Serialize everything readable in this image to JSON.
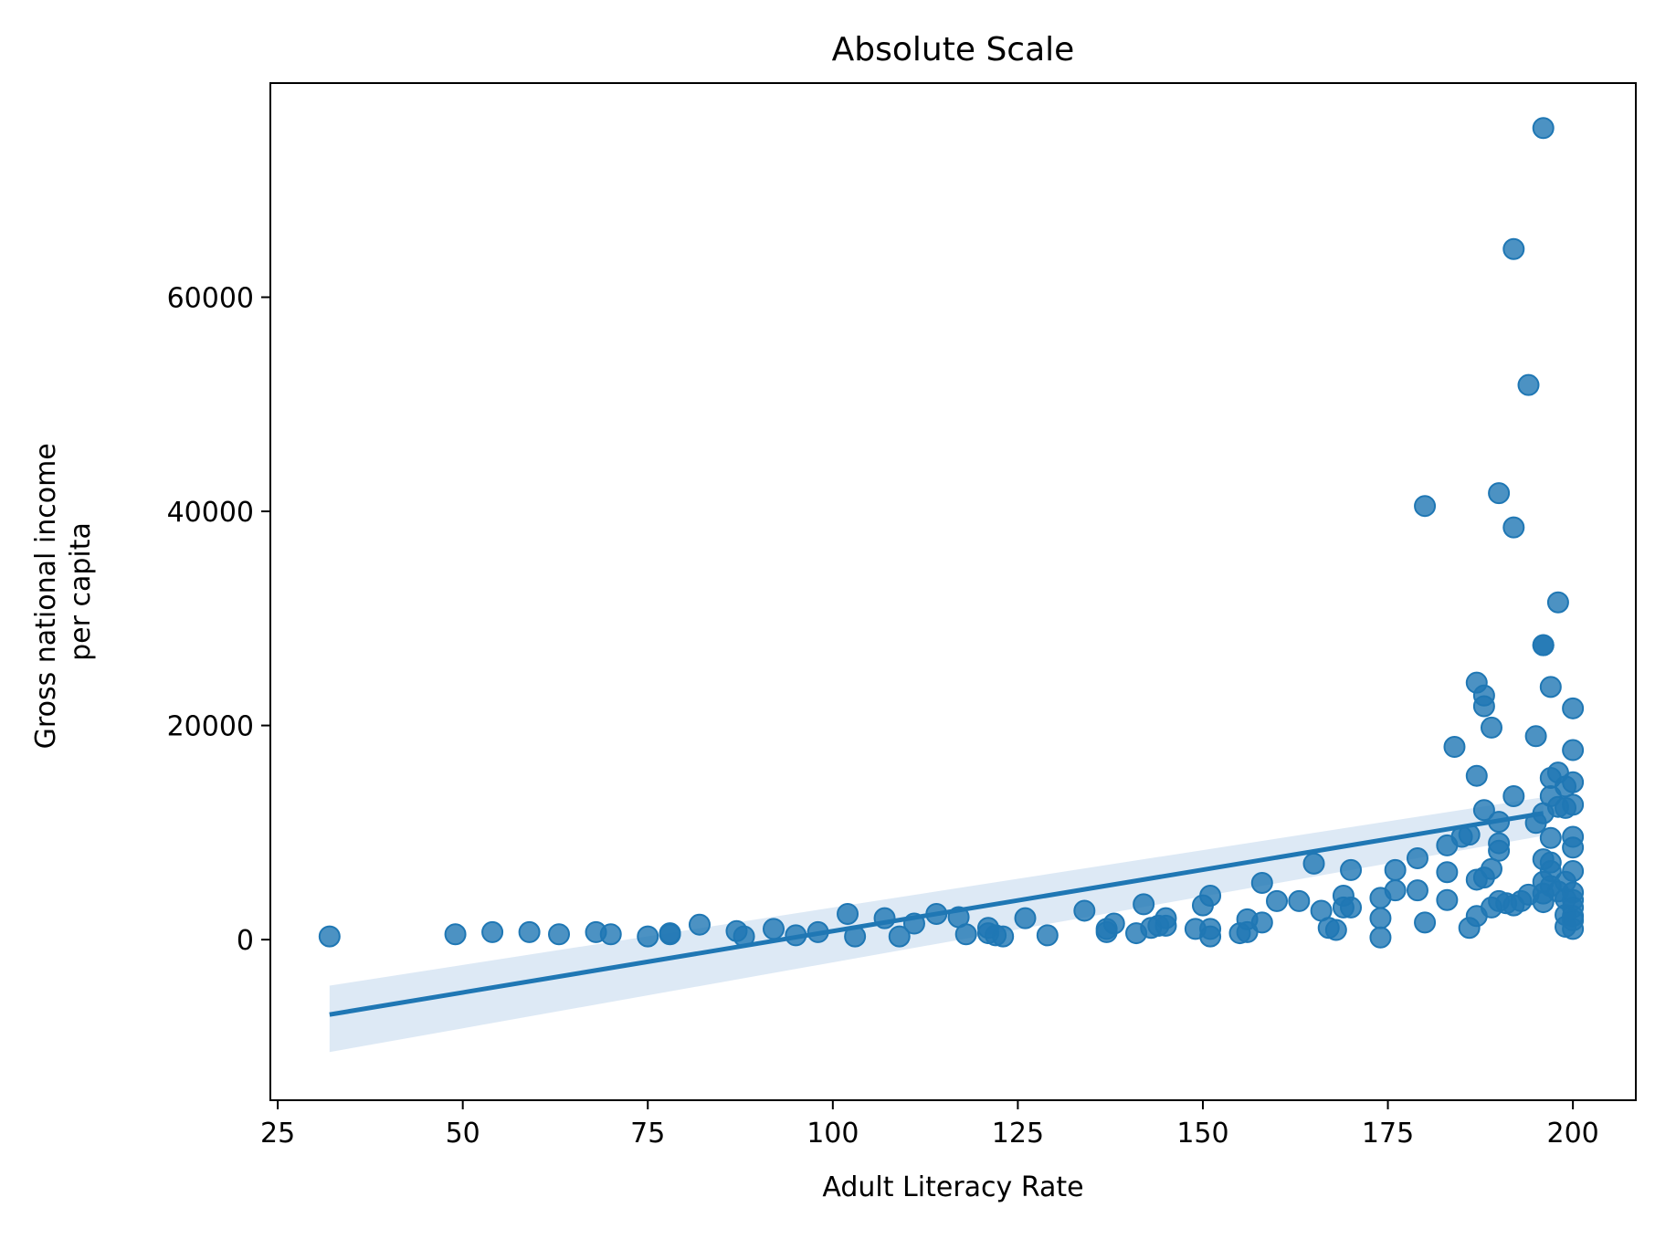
{
  "chart_data": {
    "type": "scatter",
    "title": "Absolute Scale",
    "xlabel": "Adult Literacy Rate",
    "ylabel_lines": [
      "Gross national income",
      "per capita"
    ],
    "xlim": [
      24,
      208.5
    ],
    "ylim": [
      -15000,
      80000
    ],
    "xticks": [
      25,
      50,
      75,
      100,
      125,
      150,
      175,
      200
    ],
    "yticks": [
      0,
      20000,
      40000,
      60000
    ],
    "grid": false,
    "colors": {
      "points": "#1f77b4",
      "line": "#1f77b4",
      "band": "#c6dbef"
    },
    "regression": {
      "x_start": 32,
      "y_start": -7000,
      "x_end": 196,
      "y_end": 11800,
      "ci_at_start": [
        -10500,
        -4300
      ],
      "ci_at_end": [
        9700,
        13300
      ]
    },
    "points": [
      [
        32,
        300
      ],
      [
        49,
        500
      ],
      [
        54,
        700
      ],
      [
        59,
        700
      ],
      [
        63,
        500
      ],
      [
        68,
        700
      ],
      [
        70,
        500
      ],
      [
        75,
        300
      ],
      [
        78,
        600
      ],
      [
        78,
        500
      ],
      [
        82,
        1400
      ],
      [
        87,
        800
      ],
      [
        88,
        300
      ],
      [
        92,
        1000
      ],
      [
        95,
        400
      ],
      [
        98,
        700
      ],
      [
        102,
        2400
      ],
      [
        103,
        300
      ],
      [
        107,
        2000
      ],
      [
        109,
        300
      ],
      [
        111,
        1500
      ],
      [
        114,
        2400
      ],
      [
        117,
        2100
      ],
      [
        118,
        500
      ],
      [
        121,
        1100
      ],
      [
        121,
        600
      ],
      [
        122,
        400
      ],
      [
        123,
        300
      ],
      [
        126,
        2000
      ],
      [
        129,
        400
      ],
      [
        134,
        2700
      ],
      [
        137,
        700
      ],
      [
        137,
        1000
      ],
      [
        138,
        1500
      ],
      [
        141,
        600
      ],
      [
        142,
        3300
      ],
      [
        143,
        1100
      ],
      [
        144,
        1300
      ],
      [
        145,
        1300
      ],
      [
        145,
        2000
      ],
      [
        149,
        1000
      ],
      [
        150,
        3200
      ],
      [
        151,
        4100
      ],
      [
        151,
        1000
      ],
      [
        151,
        300
      ],
      [
        155,
        600
      ],
      [
        156,
        700
      ],
      [
        156,
        1900
      ],
      [
        158,
        1600
      ],
      [
        158,
        5300
      ],
      [
        160,
        3600
      ],
      [
        163,
        3600
      ],
      [
        165,
        7100
      ],
      [
        166,
        2700
      ],
      [
        167,
        1100
      ],
      [
        168,
        900
      ],
      [
        169,
        3000
      ],
      [
        169,
        4100
      ],
      [
        170,
        6500
      ],
      [
        170,
        3000
      ],
      [
        174,
        2000
      ],
      [
        174,
        3900
      ],
      [
        174,
        200
      ],
      [
        176,
        4600
      ],
      [
        176,
        6500
      ],
      [
        179,
        7600
      ],
      [
        179,
        4600
      ],
      [
        180,
        1600
      ],
      [
        180,
        40500
      ],
      [
        183,
        8800
      ],
      [
        183,
        6300
      ],
      [
        183,
        3700
      ],
      [
        184,
        18000
      ],
      [
        185,
        9600
      ],
      [
        186,
        9800
      ],
      [
        186,
        1100
      ],
      [
        187,
        24000
      ],
      [
        187,
        5600
      ],
      [
        187,
        15300
      ],
      [
        187,
        2200
      ],
      [
        188,
        22800
      ],
      [
        188,
        21800
      ],
      [
        188,
        12100
      ],
      [
        188,
        5800
      ],
      [
        189,
        19800
      ],
      [
        189,
        6600
      ],
      [
        189,
        3000
      ],
      [
        190,
        41700
      ],
      [
        190,
        11000
      ],
      [
        190,
        9000
      ],
      [
        190,
        8300
      ],
      [
        190,
        3600
      ],
      [
        191,
        3400
      ],
      [
        192,
        64500
      ],
      [
        192,
        38500
      ],
      [
        192,
        13400
      ],
      [
        192,
        3200
      ],
      [
        193,
        3600
      ],
      [
        194,
        51800
      ],
      [
        194,
        4200
      ],
      [
        195,
        19000
      ],
      [
        195,
        10900
      ],
      [
        196,
        75800
      ],
      [
        196,
        27500
      ],
      [
        196,
        27500
      ],
      [
        196,
        11800
      ],
      [
        196,
        7500
      ],
      [
        196,
        5400
      ],
      [
        196,
        4300
      ],
      [
        196,
        3500
      ],
      [
        197,
        23600
      ],
      [
        197,
        15100
      ],
      [
        197,
        13400
      ],
      [
        197,
        9500
      ],
      [
        197,
        7200
      ],
      [
        197,
        6400
      ],
      [
        197,
        5000
      ],
      [
        198,
        31500
      ],
      [
        198,
        15600
      ],
      [
        198,
        12400
      ],
      [
        198,
        4500
      ],
      [
        199,
        14300
      ],
      [
        199,
        12300
      ],
      [
        199,
        5400
      ],
      [
        199,
        3800
      ],
      [
        199,
        2300
      ],
      [
        199,
        1200
      ],
      [
        200,
        21600
      ],
      [
        200,
        17700
      ],
      [
        200,
        14700
      ],
      [
        200,
        12600
      ],
      [
        200,
        9600
      ],
      [
        200,
        8600
      ],
      [
        200,
        6400
      ],
      [
        200,
        4400
      ],
      [
        200,
        3700
      ],
      [
        200,
        3000
      ],
      [
        200,
        2200
      ],
      [
        200,
        1800
      ],
      [
        200,
        1000
      ]
    ]
  }
}
